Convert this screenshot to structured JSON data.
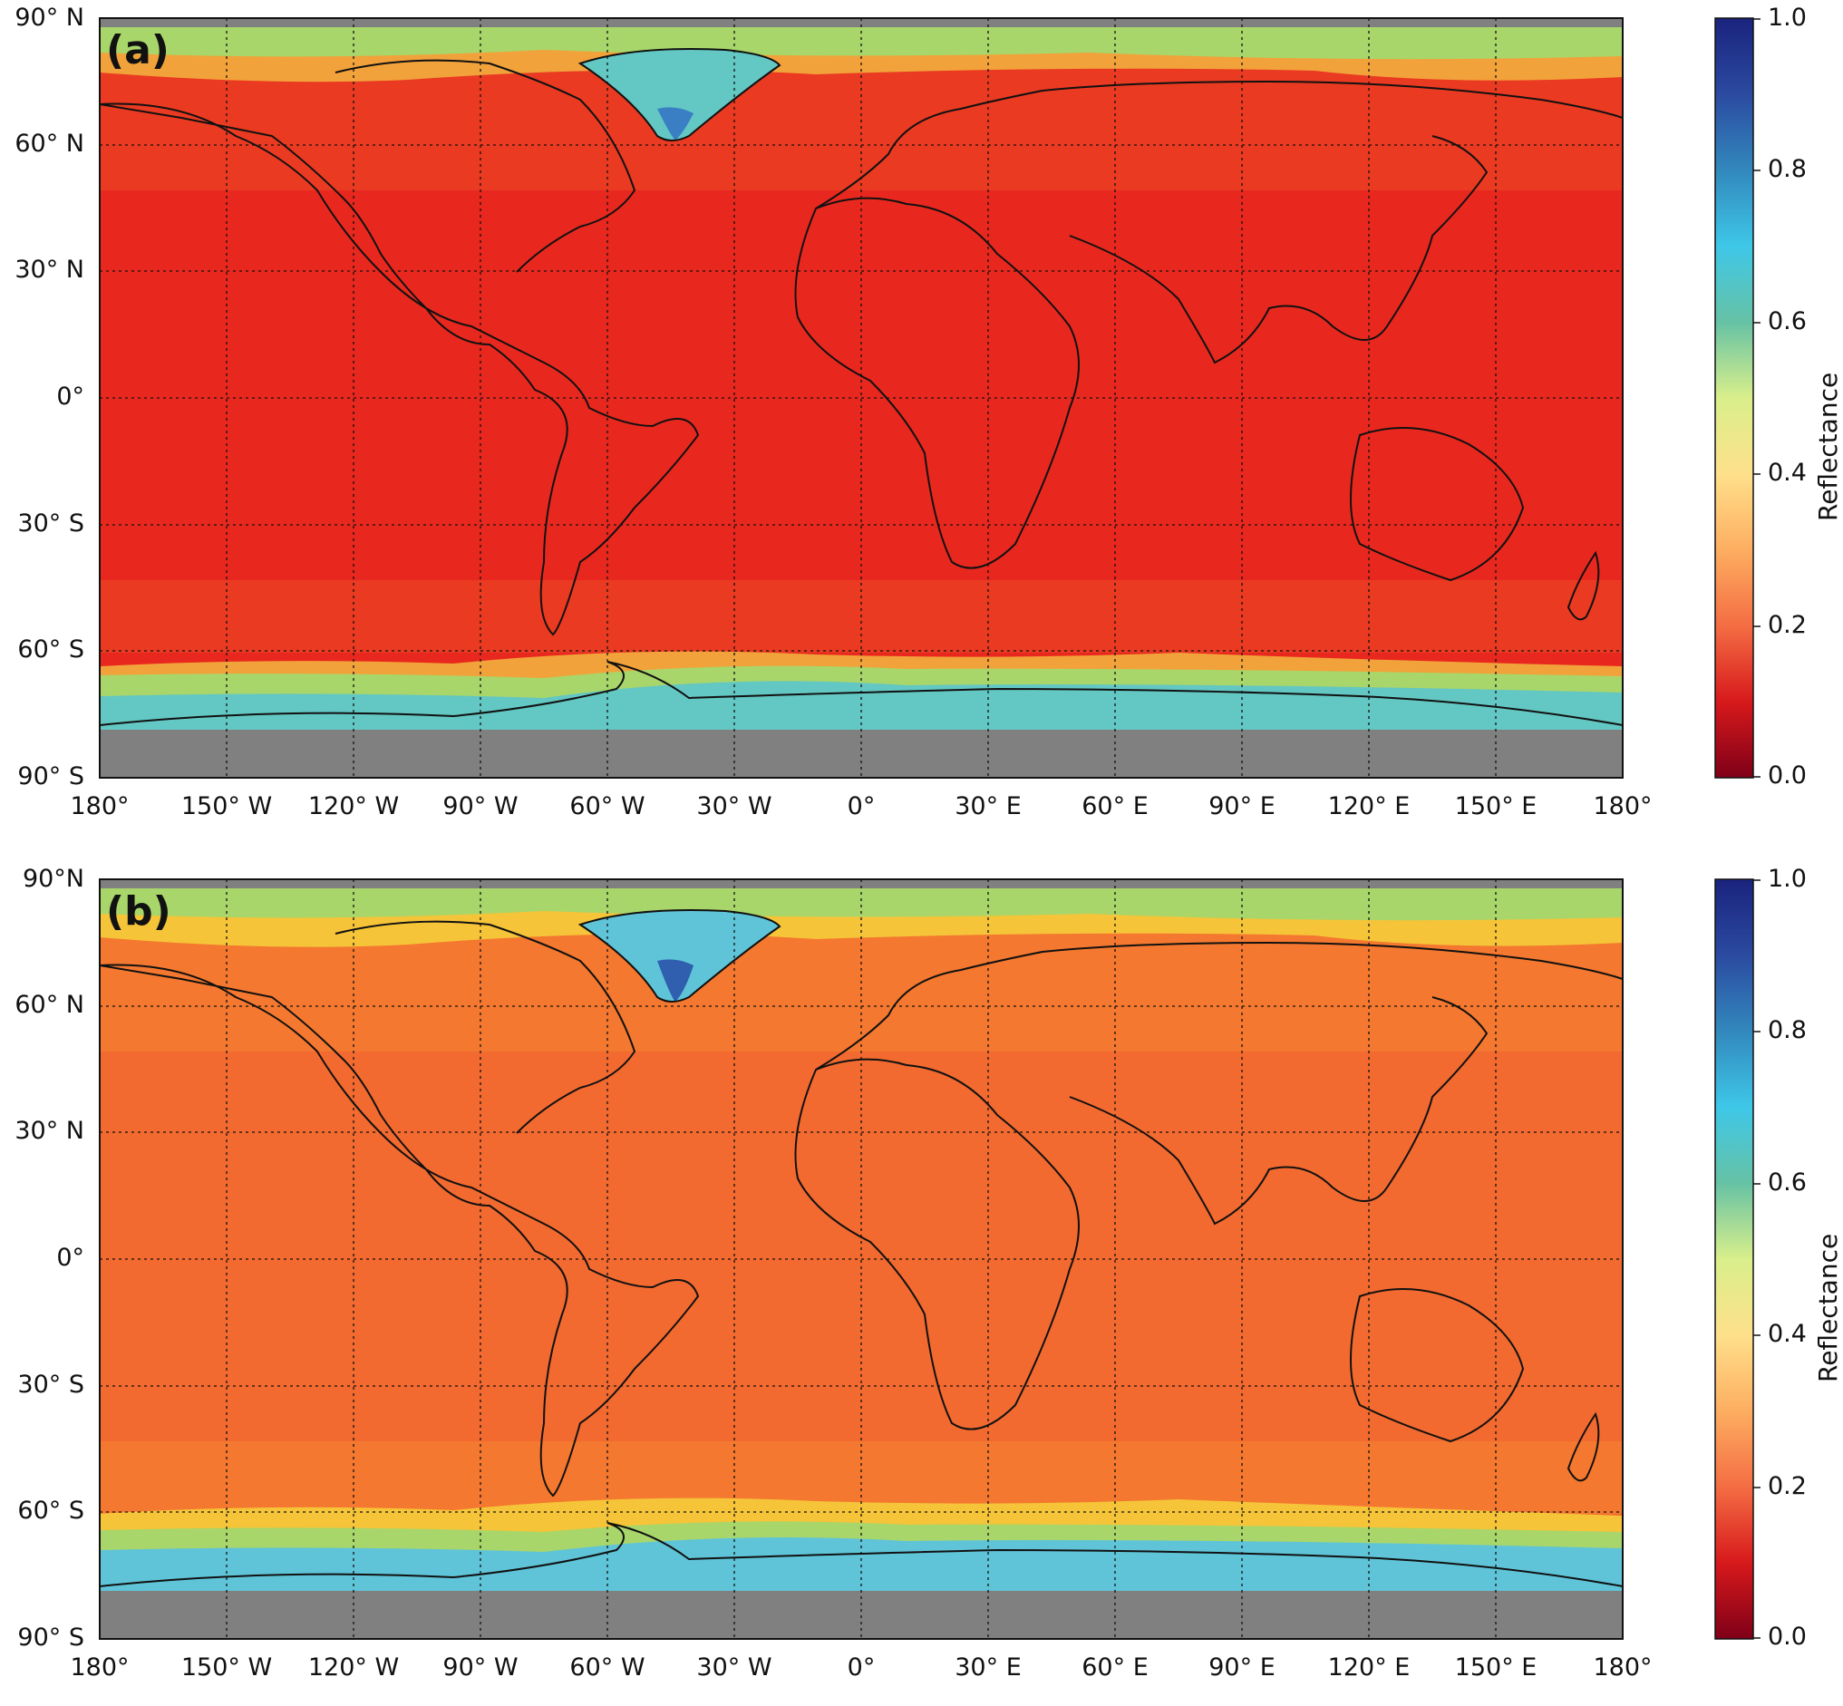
{
  "colorbar": {
    "title": "Reflectance",
    "ticks": [
      "1.0",
      "0.8",
      "0.6",
      "0.4",
      "0.2",
      "0.0"
    ],
    "colormap": [
      "#7f0018",
      "#d7191c",
      "#f46d43",
      "#fdae61",
      "#fee08b",
      "#d9ef8b",
      "#66c2a5",
      "#3ec7e8",
      "#3288bd",
      "#2b4aa0",
      "#1a237e"
    ]
  },
  "axes": {
    "lon_ticks": [
      "180°",
      "150° W",
      "120° W",
      "90° W",
      "60° W",
      "30° W",
      "0°",
      "30° E",
      "60° E",
      "90° E",
      "120° E",
      "150° E",
      "180°"
    ],
    "gridlines": "dotted"
  },
  "panels": [
    {
      "label": "(a)",
      "lat_ticks": [
        "90° N",
        "60° N",
        "30° N",
        "0°",
        "30° S",
        "60° S",
        "90° S"
      ],
      "ocean_color": "#e8281e",
      "midlat_color": "#ea3a22",
      "highlat_band_color": "#f2a23a",
      "polar_color": "#a8d66a",
      "ice_color": "#63c7c3",
      "nodata_color": "#808080"
    },
    {
      "label": "(b)",
      "lat_ticks": [
        "90°N",
        "60° N",
        "30° N",
        "0°",
        "30° S",
        "60° S",
        "90° S"
      ],
      "ocean_color": "#f26a30",
      "midlat_color": "#f4782f",
      "highlat_band_color": "#f5c438",
      "polar_color": "#a8d66a",
      "ice_color": "#5fc4d8",
      "nodata_color": "#808080"
    }
  ]
}
